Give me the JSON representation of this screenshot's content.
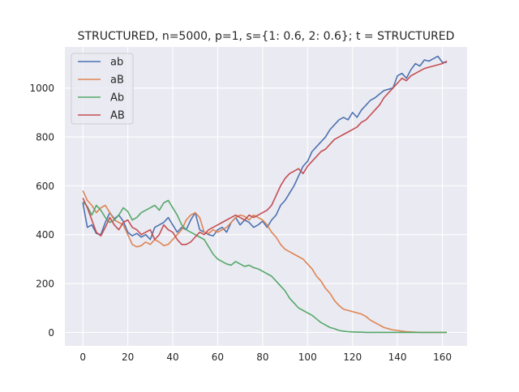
{
  "chart_data": {
    "type": "line",
    "title": "STRUCTURED, n=5000, p=1, s={1: 0.6, 2: 0.6}; t = STRUCTURED",
    "xlabel": "",
    "ylabel": "",
    "xlim": [
      -8,
      171
    ],
    "ylim": [
      -55,
      1168
    ],
    "xticks": [
      0,
      20,
      40,
      60,
      80,
      100,
      120,
      140,
      160
    ],
    "yticks": [
      0,
      200,
      400,
      600,
      800,
      1000
    ],
    "grid": true,
    "legend_position": "upper left",
    "x": [
      0,
      2,
      4,
      6,
      8,
      10,
      12,
      14,
      16,
      18,
      20,
      22,
      24,
      26,
      28,
      30,
      32,
      34,
      36,
      38,
      40,
      42,
      44,
      46,
      48,
      50,
      52,
      54,
      56,
      58,
      60,
      62,
      64,
      66,
      68,
      70,
      72,
      74,
      76,
      78,
      80,
      82,
      84,
      86,
      88,
      90,
      92,
      94,
      96,
      98,
      100,
      102,
      104,
      106,
      108,
      110,
      112,
      114,
      116,
      118,
      120,
      122,
      124,
      126,
      128,
      130,
      132,
      134,
      136,
      138,
      140,
      142,
      144,
      146,
      148,
      150,
      152,
      154,
      156,
      158,
      160,
      162
    ],
    "series": [
      {
        "name": "ab",
        "color": "#4c72b0",
        "values": [
          530,
          430,
          440,
          405,
          400,
          450,
          490,
          465,
          480,
          455,
          410,
          395,
          405,
          390,
          400,
          380,
          430,
          440,
          450,
          470,
          440,
          410,
          430,
          420,
          460,
          490,
          420,
          410,
          400,
          395,
          420,
          430,
          410,
          450,
          470,
          440,
          460,
          450,
          430,
          440,
          455,
          430,
          460,
          480,
          520,
          540,
          570,
          600,
          640,
          680,
          700,
          740,
          760,
          780,
          800,
          830,
          850,
          870,
          880,
          870,
          900,
          880,
          910,
          930,
          950,
          960,
          975,
          990,
          995,
          1000,
          1050,
          1060,
          1040,
          1075,
          1100,
          1090,
          1115,
          1110,
          1120,
          1130,
          1105,
          1105
        ]
      },
      {
        "name": "aB",
        "color": "#dd8452",
        "values": [
          580,
          540,
          520,
          490,
          510,
          520,
          490,
          460,
          450,
          440,
          400,
          360,
          350,
          355,
          370,
          360,
          380,
          370,
          355,
          360,
          380,
          400,
          420,
          460,
          480,
          490,
          470,
          410,
          405,
          420,
          410,
          420,
          430,
          450,
          470,
          480,
          475,
          460,
          480,
          470,
          460,
          440,
          410,
          390,
          360,
          340,
          330,
          320,
          310,
          300,
          280,
          260,
          230,
          210,
          180,
          160,
          130,
          110,
          95,
          90,
          85,
          80,
          75,
          65,
          50,
          40,
          30,
          20,
          15,
          10,
          8,
          5,
          3,
          2,
          1,
          0,
          0,
          0,
          0,
          0,
          0,
          0
        ]
      },
      {
        "name": "Ab",
        "color": "#55a868",
        "values": [
          535,
          515,
          480,
          520,
          500,
          470,
          450,
          460,
          480,
          510,
          495,
          460,
          470,
          490,
          500,
          510,
          520,
          500,
          530,
          540,
          510,
          480,
          440,
          420,
          410,
          400,
          390,
          380,
          350,
          320,
          300,
          290,
          280,
          275,
          290,
          280,
          270,
          275,
          265,
          260,
          250,
          240,
          230,
          210,
          190,
          170,
          140,
          120,
          100,
          90,
          80,
          70,
          55,
          40,
          30,
          20,
          15,
          8,
          5,
          3,
          2,
          1,
          1,
          0,
          0,
          0,
          0,
          0,
          0,
          0,
          0,
          0,
          0,
          0,
          0,
          0,
          0,
          0,
          0,
          0,
          0,
          0
        ]
      },
      {
        "name": "AB",
        "color": "#c44e52",
        "values": [
          550,
          510,
          460,
          410,
          395,
          430,
          470,
          440,
          420,
          450,
          460,
          430,
          420,
          400,
          410,
          420,
          380,
          400,
          440,
          420,
          410,
          380,
          360,
          360,
          370,
          390,
          410,
          400,
          420,
          430,
          440,
          450,
          460,
          470,
          480,
          470,
          460,
          480,
          470,
          480,
          490,
          500,
          520,
          560,
          600,
          630,
          650,
          660,
          670,
          650,
          680,
          700,
          720,
          740,
          750,
          770,
          790,
          800,
          810,
          820,
          830,
          840,
          860,
          870,
          890,
          910,
          930,
          960,
          980,
          1000,
          1020,
          1040,
          1030,
          1050,
          1060,
          1070,
          1080,
          1085,
          1090,
          1095,
          1100,
          1110
        ]
      }
    ]
  }
}
